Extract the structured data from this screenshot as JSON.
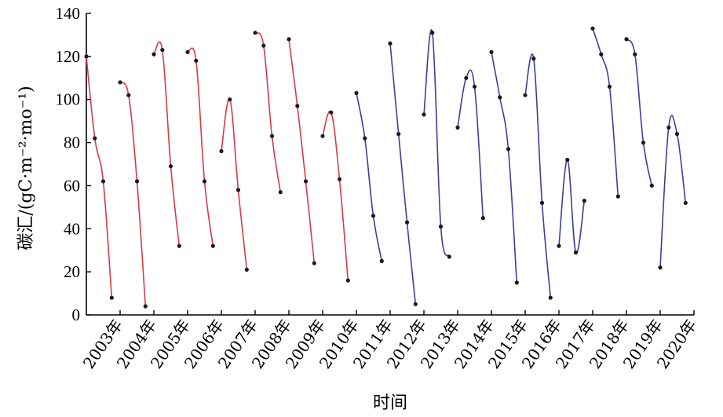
{
  "chart_data": {
    "type": "line",
    "ylabel": "碳汇/(gC·m⁻²·mo⁻¹)",
    "xlabel": "时间",
    "ylim": [
      0,
      140
    ],
    "yticks": [
      0,
      20,
      40,
      60,
      80,
      100,
      120,
      140
    ],
    "categories": [
      "2003年",
      "2004年",
      "2005年",
      "2006年",
      "2007年",
      "2008年",
      "2009年",
      "2010年",
      "2011年",
      "2012年",
      "2013年",
      "2014年",
      "2015年",
      "2016年",
      "2017年",
      "2018年",
      "2019年",
      "2020年"
    ],
    "colors": {
      "early": "#d83a45",
      "late": "#3b3f9e"
    },
    "series": [
      {
        "year": "2003年",
        "color": "early",
        "x": [
          2002.0,
          2002.25,
          2002.5,
          2002.75
        ],
        "y": [
          120,
          82,
          62,
          8
        ]
      },
      {
        "year": "2004年",
        "color": "early",
        "x": [
          2003.0,
          2003.25,
          2003.5,
          2003.75
        ],
        "y": [
          108,
          102,
          62,
          4
        ]
      },
      {
        "year": "2005年",
        "color": "early",
        "x": [
          2004.0,
          2004.25,
          2004.5,
          2004.75
        ],
        "y": [
          121,
          123,
          69,
          32
        ]
      },
      {
        "year": "2006年",
        "color": "early",
        "x": [
          2005.0,
          2005.25,
          2005.5,
          2005.75
        ],
        "y": [
          122,
          118,
          62,
          32
        ]
      },
      {
        "year": "2007年",
        "color": "early",
        "x": [
          2006.0,
          2006.25,
          2006.5,
          2006.75
        ],
        "y": [
          76,
          100,
          58,
          21
        ]
      },
      {
        "year": "2008年",
        "color": "early",
        "x": [
          2007.0,
          2007.25,
          2007.5,
          2007.75
        ],
        "y": [
          131,
          125,
          83,
          57
        ]
      },
      {
        "year": "2009年",
        "color": "early",
        "x": [
          2008.0,
          2008.25,
          2008.5,
          2008.75
        ],
        "y": [
          128,
          97,
          62,
          24
        ]
      },
      {
        "year": "2010年",
        "color": "early",
        "x": [
          2009.0,
          2009.25,
          2009.5,
          2009.75
        ],
        "y": [
          83,
          94,
          63,
          16
        ]
      },
      {
        "year": "2011年",
        "color": "late",
        "x": [
          2010.0,
          2010.25,
          2010.5,
          2010.75
        ],
        "y": [
          103,
          82,
          46,
          25
        ]
      },
      {
        "year": "2012年",
        "color": "late",
        "x": [
          2011.0,
          2011.25,
          2011.5,
          2011.75
        ],
        "y": [
          126,
          84,
          43,
          5
        ]
      },
      {
        "year": "2013年",
        "color": "late",
        "x": [
          2012.0,
          2012.25,
          2012.5,
          2012.75
        ],
        "y": [
          93,
          131,
          41,
          27
        ]
      },
      {
        "year": "2014年",
        "color": "late",
        "x": [
          2013.0,
          2013.25,
          2013.5,
          2013.75
        ],
        "y": [
          87,
          110,
          106,
          45
        ]
      },
      {
        "year": "2015年",
        "color": "late",
        "x": [
          2014.0,
          2014.25,
          2014.5,
          2014.75
        ],
        "y": [
          122,
          101,
          77,
          15
        ]
      },
      {
        "year": "2016年",
        "color": "late",
        "x": [
          2015.0,
          2015.25,
          2015.5,
          2015.75
        ],
        "y": [
          102,
          119,
          52,
          8
        ]
      },
      {
        "year": "2017年",
        "color": "late",
        "x": [
          2016.0,
          2016.25,
          2016.5,
          2016.75
        ],
        "y": [
          32,
          72,
          29,
          53
        ]
      },
      {
        "year": "2018年",
        "color": "late",
        "x": [
          2017.0,
          2017.25,
          2017.5,
          2017.75
        ],
        "y": [
          133,
          121,
          106,
          55
        ]
      },
      {
        "year": "2019年",
        "color": "late",
        "x": [
          2018.0,
          2018.25,
          2018.5,
          2018.75
        ],
        "y": [
          128,
          121,
          80,
          60
        ]
      },
      {
        "year": "2020年",
        "color": "late",
        "x": [
          2019.0,
          2019.25,
          2019.5,
          2019.75
        ],
        "y": [
          22,
          87,
          84,
          52
        ]
      }
    ],
    "grid": false,
    "legend": "none"
  }
}
